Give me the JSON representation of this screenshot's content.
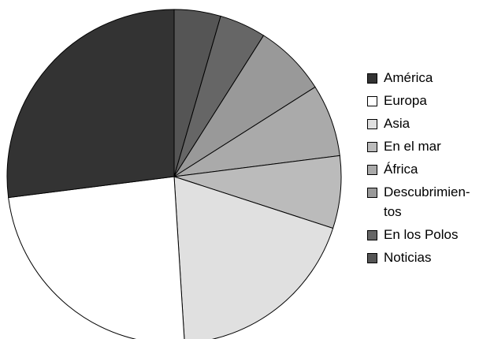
{
  "chart_data": {
    "type": "pie",
    "title": "",
    "legend_position": "right",
    "start_angle_deg": 90,
    "direction": "clockwise",
    "slices": [
      {
        "label": "Noticias",
        "legend_text": "Noticias",
        "value": 4.5,
        "color": "#555555"
      },
      {
        "label": "En los Polos",
        "legend_text": "En los Polos",
        "value": 4.5,
        "color": "#666666"
      },
      {
        "label": "Descubrimientos",
        "legend_text": "Descubrimien-\ntos",
        "value": 7,
        "color": "#999999"
      },
      {
        "label": "África",
        "legend_text": "África",
        "value": 7,
        "color": "#aaaaaa"
      },
      {
        "label": "En el mar",
        "legend_text": "En el mar",
        "value": 7,
        "color": "#bbbbbb"
      },
      {
        "label": "Asia",
        "legend_text": "Asia",
        "value": 19,
        "color": "#e0e0e0"
      },
      {
        "label": "Europa",
        "legend_text": "Europa",
        "value": 24,
        "color": "#ffffff"
      },
      {
        "label": "América",
        "legend_text": "América",
        "value": 27,
        "color": "#333333"
      }
    ],
    "legend_order": [
      "América",
      "Europa",
      "Asia",
      "En el mar",
      "África",
      "Descubrimientos",
      "En los Polos",
      "Noticias"
    ]
  }
}
